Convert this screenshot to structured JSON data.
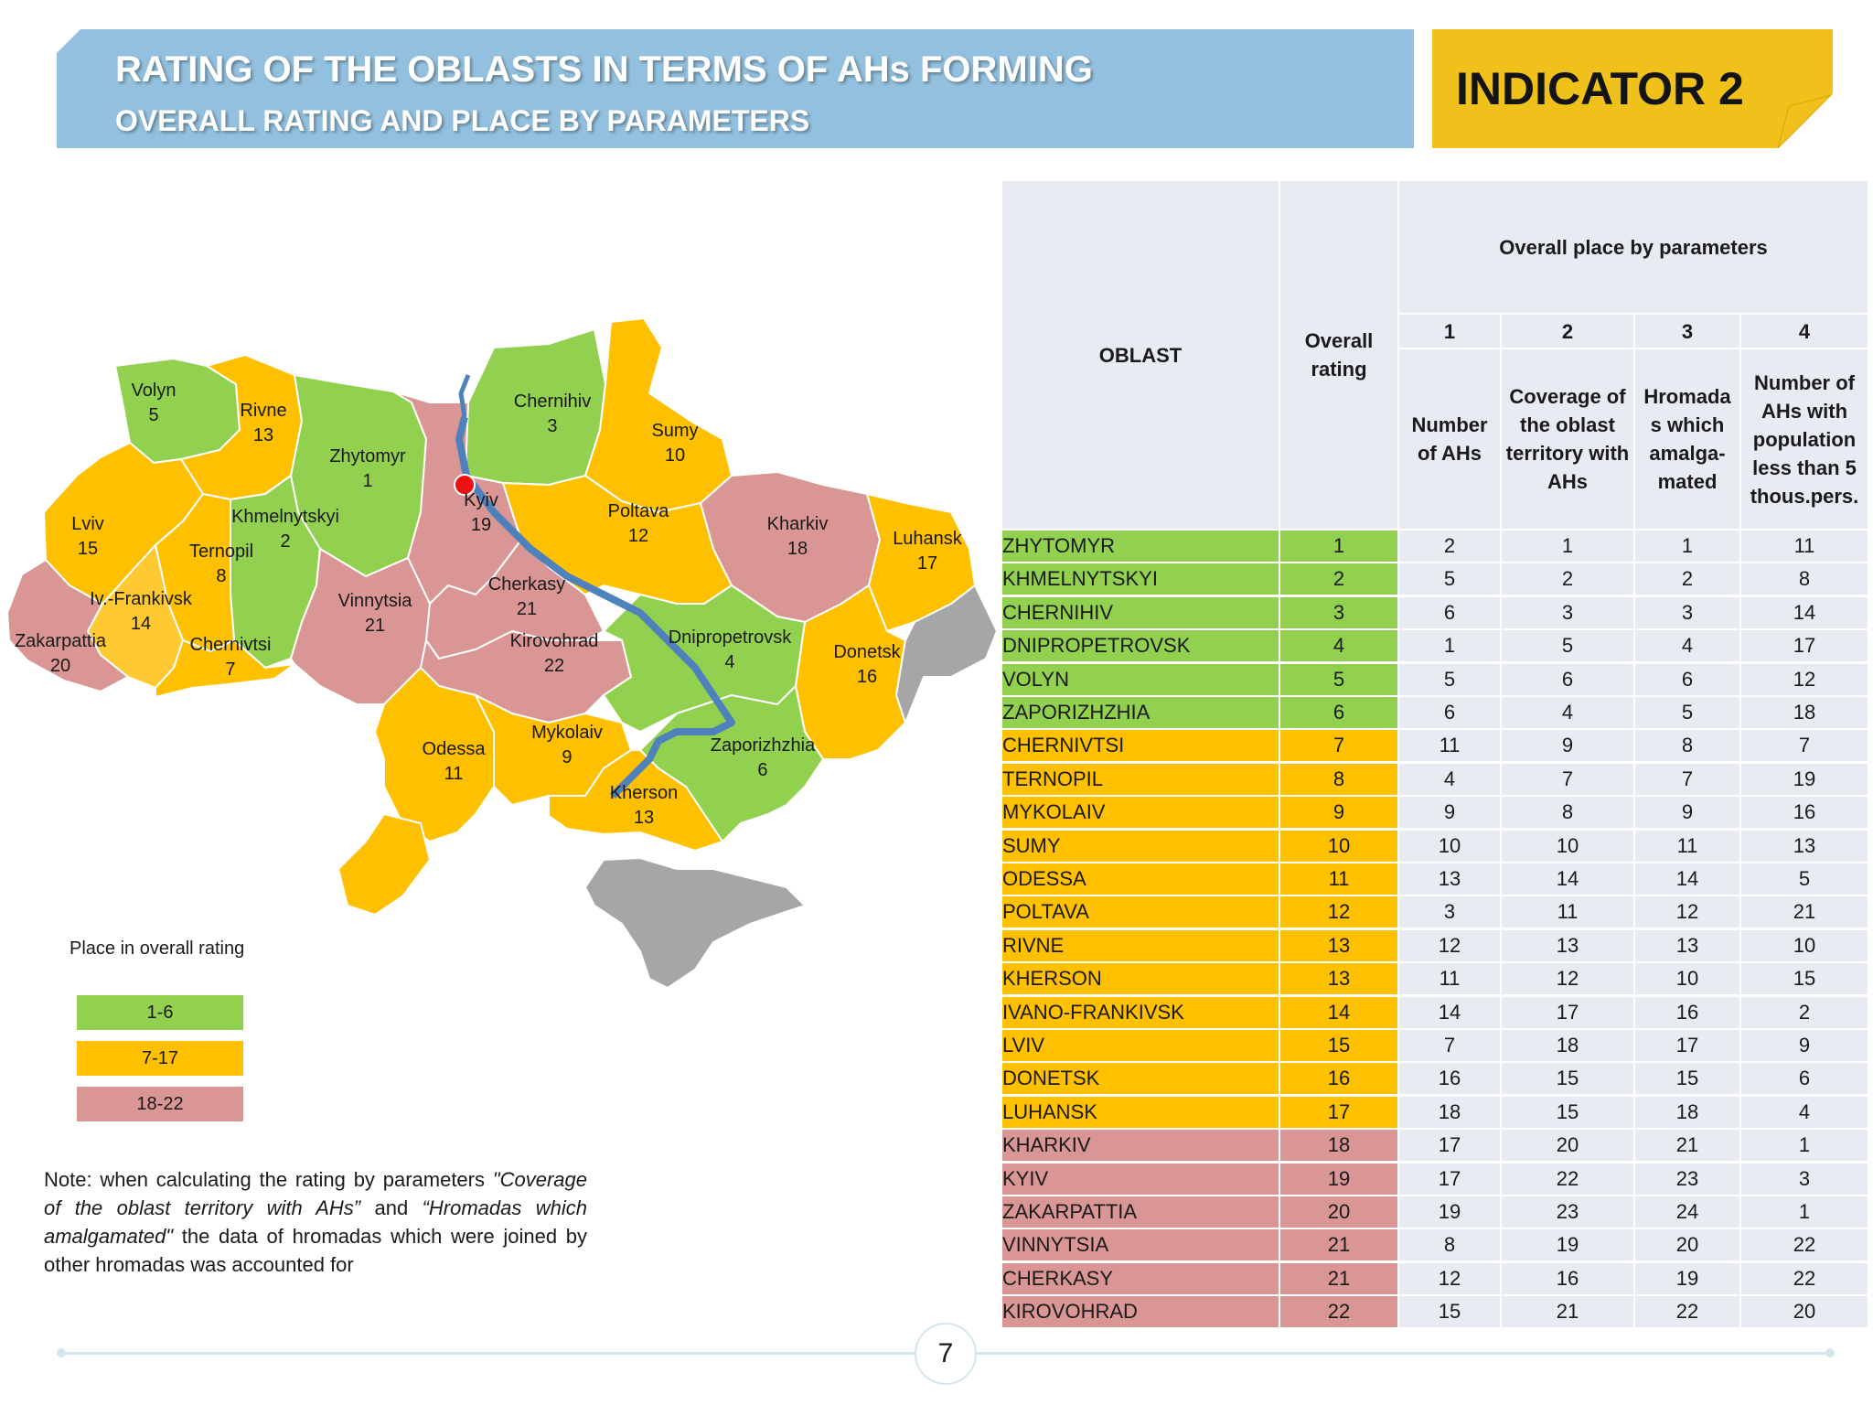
{
  "header": {
    "title": "RATING OF THE OBLASTS IN TERMS OF AHs FORMING",
    "subtitle": "OVERALL RATING AND PLACE BY PARAMETERS",
    "indicator": "INDICATOR 2"
  },
  "colors": {
    "green": "#92d050",
    "orange": "#ffc000",
    "pink": "#d99694",
    "grey": "#a6a6a8",
    "river": "#4f81bd",
    "banner": "#92c0de",
    "indicator": "#f0c11a"
  },
  "map": {
    "capital_marker": "red-dot",
    "labels": [
      {
        "id": "volyn",
        "name": "Volyn",
        "rank": "5"
      },
      {
        "id": "rivne",
        "name": "Rivne",
        "rank": "13"
      },
      {
        "id": "zhytomyr",
        "name": "Zhytomyr",
        "rank": "1"
      },
      {
        "id": "chernihiv",
        "name": "Chernihiv",
        "rank": "3"
      },
      {
        "id": "sumy",
        "name": "Sumy",
        "rank": "10"
      },
      {
        "id": "lviv",
        "name": "Lviv",
        "rank": "15"
      },
      {
        "id": "khmelnytskyi",
        "name": "Khmelnytskyi",
        "rank": "2"
      },
      {
        "id": "kyiv",
        "name": "Kyiv",
        "rank": "19"
      },
      {
        "id": "poltava",
        "name": "Poltava",
        "rank": "12"
      },
      {
        "id": "kharkiv",
        "name": "Kharkiv",
        "rank": "18"
      },
      {
        "id": "luhansk",
        "name": "Luhansk",
        "rank": "17"
      },
      {
        "id": "ternopil",
        "name": "Ternopil",
        "rank": "8"
      },
      {
        "id": "ivfrankivsk",
        "name": "Iv.-Frankivsk",
        "rank": "14"
      },
      {
        "id": "cherkasy",
        "name": "Cherkasy",
        "rank": "21"
      },
      {
        "id": "vinnytsia",
        "name": "Vinnytsia",
        "rank": "21"
      },
      {
        "id": "zakarpattia",
        "name": "Zakarpattia",
        "rank": "20"
      },
      {
        "id": "chernivtsi",
        "name": "Chernivtsi",
        "rank": "7"
      },
      {
        "id": "kirovohrad",
        "name": "Kirovohrad",
        "rank": "22"
      },
      {
        "id": "dnipropetrovsk",
        "name": "Dnipropetrovsk",
        "rank": "4"
      },
      {
        "id": "donetsk",
        "name": "Donetsk",
        "rank": "16"
      },
      {
        "id": "odessa",
        "name": "Odessa",
        "rank": "11"
      },
      {
        "id": "mykolaiv",
        "name": "Mykolaiv",
        "rank": "9"
      },
      {
        "id": "zaporizhzhia",
        "name": "Zaporizhzhia",
        "rank": "6"
      },
      {
        "id": "kherson",
        "name": "Kherson",
        "rank": "13"
      }
    ]
  },
  "legend": {
    "title": "Place in overall rating",
    "items": [
      {
        "label": "1-6",
        "color": "#92d050"
      },
      {
        "label": "7-17",
        "color": "#ffc000"
      },
      {
        "label": "18-22",
        "color": "#d99694"
      }
    ]
  },
  "note": {
    "intro": "Note: when calculating the rating by parameters",
    "param1": "\"Coverage of the oblast territory with AHs”",
    "and": "and",
    "param2": "“Hromadas which amalgamated\"",
    "rest": "the data of hromadas which were joined by other hromadas was accounted for"
  },
  "table": {
    "col_oblast": "OBLAST",
    "col_rating": "Overall rating",
    "group_header": "Overall place by parameters",
    "param_numbers": [
      "1",
      "2",
      "3",
      "4"
    ],
    "param_names": [
      "Number of AHs",
      "Coverage of the oblast territory with AHs",
      "Hromada s which amalga-mated",
      "Number of AHs with population less than 5 thous.pers."
    ],
    "rows": [
      {
        "name": "ZHYTOMYR",
        "rating": "1",
        "p1": "2",
        "p2": "1",
        "p3": "1",
        "p4": "11",
        "group": "green"
      },
      {
        "name": "KHMELNYTSKYI",
        "rating": "2",
        "p1": "5",
        "p2": "2",
        "p3": "2",
        "p4": "8",
        "group": "green"
      },
      {
        "name": "CHERNIHIV",
        "rating": "3",
        "p1": "6",
        "p2": "3",
        "p3": "3",
        "p4": "14",
        "group": "green"
      },
      {
        "name": "DNIPROPETROVSK",
        "rating": "4",
        "p1": "1",
        "p2": "5",
        "p3": "4",
        "p4": "17",
        "group": "green"
      },
      {
        "name": "VOLYN",
        "rating": "5",
        "p1": "5",
        "p2": "6",
        "p3": "6",
        "p4": "12",
        "group": "green"
      },
      {
        "name": "ZAPORIZHZHIA",
        "rating": "6",
        "p1": "6",
        "p2": "4",
        "p3": "5",
        "p4": "18",
        "group": "green"
      },
      {
        "name": "CHERNIVTSI",
        "rating": "7",
        "p1": "11",
        "p2": "9",
        "p3": "8",
        "p4": "7",
        "group": "orange"
      },
      {
        "name": "TERNOPIL",
        "rating": "8",
        "p1": "4",
        "p2": "7",
        "p3": "7",
        "p4": "19",
        "group": "orange"
      },
      {
        "name": "MYKOLAIV",
        "rating": "9",
        "p1": "9",
        "p2": "8",
        "p3": "9",
        "p4": "16",
        "group": "orange"
      },
      {
        "name": "SUMY",
        "rating": "10",
        "p1": "10",
        "p2": "10",
        "p3": "11",
        "p4": "13",
        "group": "orange"
      },
      {
        "name": "ODESSA",
        "rating": "11",
        "p1": "13",
        "p2": "14",
        "p3": "14",
        "p4": "5",
        "group": "orange"
      },
      {
        "name": "POLTAVA",
        "rating": "12",
        "p1": "3",
        "p2": "11",
        "p3": "12",
        "p4": "21",
        "group": "orange"
      },
      {
        "name": "RIVNE",
        "rating": "13",
        "p1": "12",
        "p2": "13",
        "p3": "13",
        "p4": "10",
        "group": "orange"
      },
      {
        "name": "KHERSON",
        "rating": "13",
        "p1": "11",
        "p2": "12",
        "p3": "10",
        "p4": "15",
        "group": "orange"
      },
      {
        "name": "IVANO-FRANKIVSK",
        "rating": "14",
        "p1": "14",
        "p2": "17",
        "p3": "16",
        "p4": "2",
        "group": "orange"
      },
      {
        "name": "LVIV",
        "rating": "15",
        "p1": "7",
        "p2": "18",
        "p3": "17",
        "p4": "9",
        "group": "orange"
      },
      {
        "name": "DONETSK",
        "rating": "16",
        "p1": "16",
        "p2": "15",
        "p3": "15",
        "p4": "6",
        "group": "orange"
      },
      {
        "name": "LUHANSK",
        "rating": "17",
        "p1": "18",
        "p2": "15",
        "p3": "18",
        "p4": "4",
        "group": "orange"
      },
      {
        "name": "KHARKIV",
        "rating": "18",
        "p1": "17",
        "p2": "20",
        "p3": "21",
        "p4": "1",
        "group": "pink"
      },
      {
        "name": "KYIV",
        "rating": "19",
        "p1": "17",
        "p2": "22",
        "p3": "23",
        "p4": "3",
        "group": "pink"
      },
      {
        "name": "ZAKARPATTIA",
        "rating": "20",
        "p1": "19",
        "p2": "23",
        "p3": "24",
        "p4": "1",
        "group": "pink"
      },
      {
        "name": "VINNYTSIA",
        "rating": "21",
        "p1": "8",
        "p2": "19",
        "p3": "20",
        "p4": "22",
        "group": "pink"
      },
      {
        "name": "CHERKASY",
        "rating": "21",
        "p1": "12",
        "p2": "16",
        "p3": "19",
        "p4": "22",
        "group": "pink"
      },
      {
        "name": "KIROVOHRAD",
        "rating": "22",
        "p1": "15",
        "p2": "21",
        "p3": "22",
        "p4": "20",
        "group": "pink"
      }
    ]
  },
  "footer": {
    "page_number": "7"
  }
}
